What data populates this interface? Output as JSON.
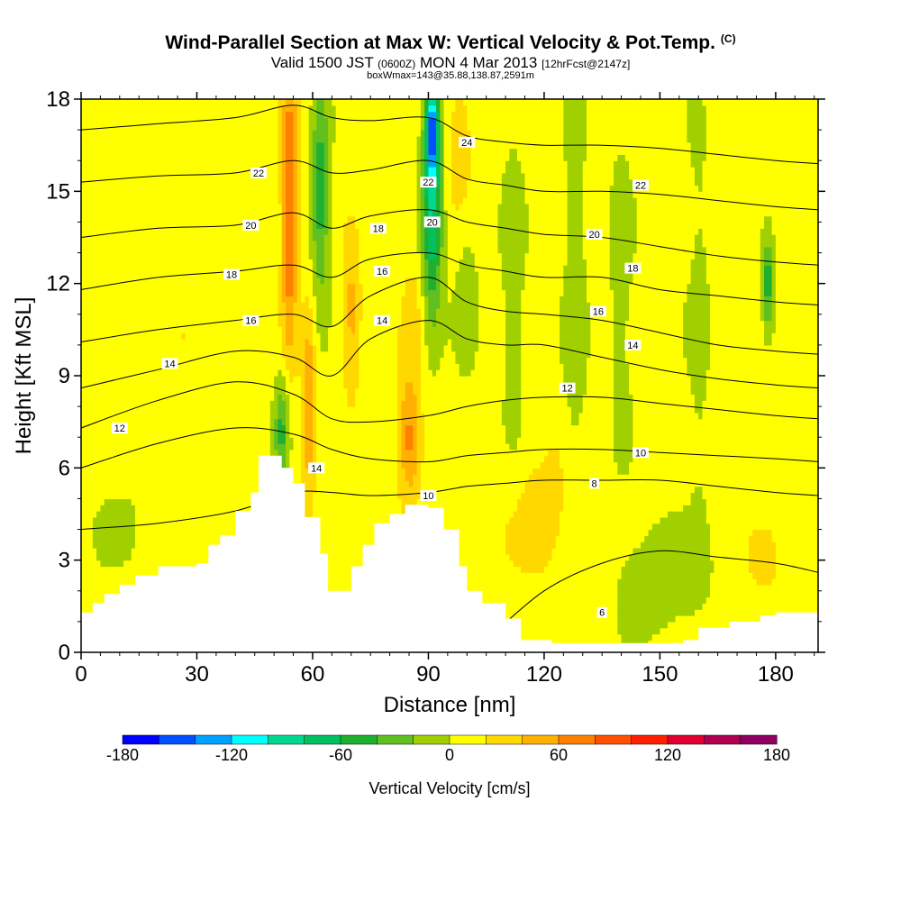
{
  "header": {
    "title": "Wind-Parallel Section at Max W: Vertical Velocity & Pot.Temp.",
    "copyright": "(C)",
    "valid_prefix": "Valid 1500 JST",
    "valid_utc": "(0600Z)",
    "valid_date": "MON 4 Mar 2013",
    "forecast": "[12hrFcst@2147z]",
    "box_info": "boxWmax=143@35.88,138.87,2591m"
  },
  "chart_data": {
    "type": "heatmap",
    "title": "Wind-Parallel Section at Max W: Vertical Velocity & Pot.Temp.",
    "xlabel": "Distance [nm]",
    "ylabel": "Height [Kft MSL]",
    "xlim": [
      0,
      191
    ],
    "ylim": [
      0,
      18
    ],
    "x_ticks": [
      0,
      30,
      60,
      90,
      120,
      150,
      180
    ],
    "y_ticks": [
      0,
      3,
      6,
      9,
      12,
      15,
      18
    ],
    "grid": false,
    "colorbar": {
      "label": "Vertical Velocity [cm/s]",
      "placement": "bottom",
      "min": -180,
      "max": 180,
      "step": 20,
      "tick_labels": [
        -180,
        -120,
        -60,
        0,
        60,
        120,
        180
      ],
      "colors": [
        "#0000ff",
        "#0050ff",
        "#00a0ff",
        "#00ffff",
        "#00d890",
        "#00c060",
        "#20b030",
        "#60c020",
        "#a0d000",
        "#ffff00",
        "#ffd800",
        "#ffb000",
        "#ff8000",
        "#ff5000",
        "#ff2000",
        "#e00030",
        "#b00050",
        "#900060",
        "#600080"
      ]
    },
    "terrain_profile": {
      "x": [
        0,
        3,
        6,
        10,
        14,
        20,
        30,
        33,
        36,
        40,
        44,
        46,
        52,
        55,
        58,
        62,
        64,
        70,
        73,
        76,
        80,
        84,
        90,
        94,
        98,
        100,
        104,
        110,
        114,
        122,
        132,
        142,
        150,
        156,
        160,
        168,
        176,
        180,
        191
      ],
      "top": [
        1.3,
        1.6,
        1.9,
        2.2,
        2.5,
        2.8,
        2.9,
        3.5,
        3.8,
        4.6,
        5.2,
        6.4,
        6.0,
        5.5,
        4.4,
        3.2,
        2.0,
        2.8,
        3.5,
        4.2,
        4.5,
        4.8,
        4.7,
        4.0,
        2.8,
        2.0,
        1.6,
        1.1,
        0.4,
        0.3,
        0.3,
        0.3,
        0.3,
        0.4,
        0.8,
        1.0,
        1.2,
        1.3,
        1.3
      ]
    },
    "velocity_field": {
      "background_value": 8,
      "features": [
        {
          "x": 54,
          "y": 14.5,
          "half_width_x": 2.0,
          "half_height_y": 4.5,
          "value": 80
        },
        {
          "x": 59,
          "y": 8.0,
          "half_width_x": 1.8,
          "half_height_y": 3.0,
          "value": 55
        },
        {
          "x": 62,
          "y": 15.0,
          "half_width_x": 2.2,
          "half_height_y": 3.5,
          "value": -60
        },
        {
          "x": 52,
          "y": 7.2,
          "half_width_x": 1.8,
          "half_height_y": 1.8,
          "value": -50
        },
        {
          "x": 70,
          "y": 11.0,
          "half_width_x": 2.5,
          "half_height_y": 2.5,
          "value": 40
        },
        {
          "x": 85,
          "y": 7.0,
          "half_width_x": 3.0,
          "half_height_y": 2.0,
          "value": 60
        },
        {
          "x": 86,
          "y": 11.0,
          "half_width_x": 3.0,
          "half_height_y": 2.0,
          "value": 20
        },
        {
          "x": 91,
          "y": 14.5,
          "half_width_x": 2.6,
          "half_height_y": 3.5,
          "value": -90
        },
        {
          "x": 91,
          "y": 17.0,
          "half_width_x": 1.5,
          "half_height_y": 1.4,
          "value": -120
        },
        {
          "x": 98,
          "y": 16.5,
          "half_width_x": 3.0,
          "half_height_y": 1.8,
          "value": 35
        },
        {
          "x": 100,
          "y": 11.5,
          "half_width_x": 3.0,
          "half_height_y": 2.5,
          "value": -20
        },
        {
          "x": 112,
          "y": 12.0,
          "half_width_x": 3.0,
          "half_height_y": 6.0,
          "value": -20
        },
        {
          "x": 128,
          "y": 11.0,
          "half_width_x": 3.0,
          "half_height_y": 7.0,
          "value": -22
        },
        {
          "x": 140,
          "y": 12.0,
          "half_width_x": 3.0,
          "half_height_y": 6.0,
          "value": -18
        },
        {
          "x": 160,
          "y": 11.0,
          "half_width_x": 3.0,
          "half_height_y": 7.0,
          "value": -15
        },
        {
          "x": 178,
          "y": 12.0,
          "half_width_x": 1.5,
          "half_height_y": 1.5,
          "value": -60
        },
        {
          "x": 10,
          "y": 4.2,
          "half_width_x": 8.0,
          "half_height_y": 1.5,
          "value": -10
        },
        {
          "x": 30,
          "y": 10.0,
          "half_width_x": 8.0,
          "half_height_y": 3.0,
          "value": 10
        },
        {
          "x": 120,
          "y": 4.5,
          "half_width_x": 12.0,
          "half_height_y": 2.5,
          "value": 20
        },
        {
          "x": 150,
          "y": 2.5,
          "half_width_x": 12.0,
          "half_height_y": 1.8,
          "value": -22
        },
        {
          "x": 178,
          "y": 3.0,
          "half_width_x": 6.0,
          "half_height_y": 1.6,
          "value": 15
        }
      ]
    },
    "isentropes": {
      "label": "Pot.Temp.",
      "lines": [
        {
          "level": 6,
          "x": [
            105,
            120,
            135,
            150,
            165,
            180,
            191
          ],
          "y": [
            0.4,
            2.0,
            2.9,
            3.3,
            3.1,
            2.9,
            2.6
          ]
        },
        {
          "level": 8,
          "x": [
            0,
            20,
            40,
            55,
            65,
            75,
            90,
            100,
            110,
            120,
            135,
            150,
            165,
            180,
            191
          ],
          "y": [
            4.0,
            4.2,
            4.6,
            5.2,
            5.2,
            5.1,
            5.2,
            5.4,
            5.5,
            5.6,
            5.6,
            5.6,
            5.4,
            5.2,
            5.1
          ]
        },
        {
          "level": 10,
          "x": [
            0,
            20,
            40,
            55,
            65,
            75,
            90,
            100,
            110,
            120,
            135,
            150,
            165,
            180,
            191
          ],
          "y": [
            6.0,
            6.8,
            7.3,
            7.1,
            6.6,
            6.3,
            6.2,
            6.4,
            6.5,
            6.6,
            6.6,
            6.5,
            6.4,
            6.3,
            6.2
          ]
        },
        {
          "level": 12,
          "x": [
            0,
            20,
            40,
            55,
            65,
            75,
            90,
            100,
            110,
            120,
            135,
            150,
            165,
            180,
            191
          ],
          "y": [
            7.3,
            8.2,
            8.8,
            8.4,
            7.6,
            7.5,
            7.7,
            8.0,
            8.2,
            8.3,
            8.3,
            8.1,
            7.9,
            7.7,
            7.6
          ]
        },
        {
          "level": 14,
          "x": [
            0,
            20,
            40,
            55,
            65,
            75,
            90,
            100,
            110,
            120,
            135,
            150,
            165,
            180,
            191
          ],
          "y": [
            8.6,
            9.2,
            9.8,
            9.6,
            9.0,
            10.2,
            10.8,
            10.2,
            10.0,
            10.0,
            9.6,
            9.2,
            8.9,
            8.7,
            8.6
          ]
        },
        {
          "level": 16,
          "x": [
            0,
            20,
            40,
            55,
            65,
            75,
            90,
            100,
            110,
            120,
            135,
            150,
            165,
            180,
            191
          ],
          "y": [
            10.1,
            10.5,
            10.8,
            11.0,
            10.6,
            11.6,
            12.2,
            11.4,
            11.1,
            11.0,
            10.8,
            10.4,
            10.0,
            9.8,
            9.7
          ]
        },
        {
          "level": 18,
          "x": [
            0,
            20,
            40,
            55,
            65,
            75,
            90,
            100,
            110,
            120,
            135,
            150,
            165,
            180,
            191
          ],
          "y": [
            11.8,
            12.2,
            12.4,
            12.6,
            12.2,
            12.8,
            13.0,
            12.6,
            12.4,
            12.2,
            12.2,
            11.8,
            11.6,
            11.4,
            11.3
          ]
        },
        {
          "level": 20,
          "x": [
            0,
            20,
            40,
            55,
            65,
            75,
            90,
            100,
            110,
            120,
            135,
            150,
            165,
            180,
            191
          ],
          "y": [
            13.5,
            13.8,
            13.9,
            14.3,
            13.8,
            14.2,
            14.4,
            14.0,
            13.8,
            13.6,
            13.5,
            13.2,
            12.9,
            12.7,
            12.6
          ]
        },
        {
          "level": 22,
          "x": [
            0,
            20,
            40,
            55,
            65,
            75,
            90,
            100,
            110,
            120,
            135,
            150,
            165,
            180,
            191
          ],
          "y": [
            15.3,
            15.5,
            15.6,
            16.0,
            15.6,
            15.7,
            16.0,
            15.4,
            15.2,
            15.0,
            15.0,
            14.9,
            14.7,
            14.5,
            14.4
          ]
        },
        {
          "level": 24,
          "x": [
            0,
            20,
            40,
            55,
            65,
            75,
            90,
            100,
            110,
            120,
            135,
            150,
            165,
            180,
            191
          ],
          "y": [
            17.0,
            17.2,
            17.4,
            17.8,
            17.4,
            17.3,
            17.4,
            16.8,
            16.6,
            16.5,
            16.5,
            16.4,
            16.2,
            16.0,
            15.9
          ]
        }
      ],
      "labels": [
        {
          "text": "22",
          "x": 46,
          "y": 15.6
        },
        {
          "text": "20",
          "x": 44,
          "y": 13.9
        },
        {
          "text": "18",
          "x": 39,
          "y": 12.3
        },
        {
          "text": "16",
          "x": 44,
          "y": 10.8
        },
        {
          "text": "14",
          "x": 23,
          "y": 9.4
        },
        {
          "text": "12",
          "x": 10,
          "y": 7.3
        },
        {
          "text": "14",
          "x": 61,
          "y": 6.0
        },
        {
          "text": "18",
          "x": 77,
          "y": 13.8
        },
        {
          "text": "16",
          "x": 78,
          "y": 12.4
        },
        {
          "text": "14",
          "x": 78,
          "y": 10.8
        },
        {
          "text": "10",
          "x": 90,
          "y": 5.1
        },
        {
          "text": "22",
          "x": 90,
          "y": 15.3
        },
        {
          "text": "20",
          "x": 91,
          "y": 14.0
        },
        {
          "text": "24",
          "x": 100,
          "y": 16.6
        },
        {
          "text": "22",
          "x": 145,
          "y": 15.2
        },
        {
          "text": "20",
          "x": 133,
          "y": 13.6
        },
        {
          "text": "18",
          "x": 143,
          "y": 12.5
        },
        {
          "text": "16",
          "x": 134,
          "y": 11.1
        },
        {
          "text": "14",
          "x": 143,
          "y": 10.0
        },
        {
          "text": "12",
          "x": 126,
          "y": 8.6
        },
        {
          "text": "10",
          "x": 145,
          "y": 6.5
        },
        {
          "text": "8",
          "x": 133,
          "y": 5.5
        },
        {
          "text": "6",
          "x": 135,
          "y": 1.3
        }
      ]
    }
  }
}
